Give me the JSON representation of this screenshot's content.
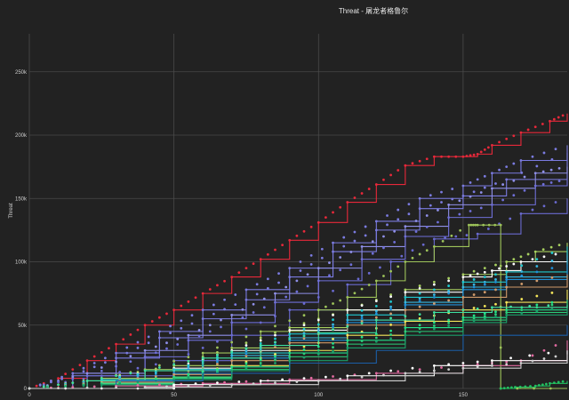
{
  "chart_data": {
    "type": "line",
    "title": "Threat - 屠龙者格鲁尔",
    "xlabel": "",
    "ylabel": "Threat",
    "xlim": [
      0,
      186
    ],
    "ylim": [
      0,
      280000
    ],
    "x_ticks": [
      "0",
      "50",
      "100",
      "150"
    ],
    "x_tick_values": [
      0,
      50,
      100,
      150
    ],
    "y_ticks": [
      "0",
      "50k",
      "100k",
      "150k",
      "200k",
      "250k"
    ],
    "y_tick_values": [
      0,
      50000,
      100000,
      150000,
      200000,
      250000
    ],
    "grid": true,
    "series": [
      {
        "color": "#e8283a",
        "marker": true,
        "points": [
          [
            0,
            0
          ],
          [
            10,
            8000
          ],
          [
            20,
            22000
          ],
          [
            30,
            35000
          ],
          [
            40,
            50000
          ],
          [
            50,
            62000
          ],
          [
            60,
            75000
          ],
          [
            70,
            88000
          ],
          [
            80,
            102000
          ],
          [
            90,
            117000
          ],
          [
            100,
            131000
          ],
          [
            110,
            147000
          ],
          [
            120,
            161000
          ],
          [
            130,
            176000
          ],
          [
            140,
            183000
          ],
          [
            150,
            183000
          ],
          [
            155,
            185000
          ],
          [
            160,
            192000
          ],
          [
            170,
            202000
          ],
          [
            180,
            211000
          ],
          [
            186,
            217000
          ]
        ]
      },
      {
        "color": "#7b7be0",
        "marker": true,
        "points": [
          [
            0,
            0
          ],
          [
            15,
            12000
          ],
          [
            30,
            28000
          ],
          [
            45,
            45000
          ],
          [
            60,
            62000
          ],
          [
            75,
            78000
          ],
          [
            90,
            95000
          ],
          [
            105,
            115000
          ],
          [
            120,
            132000
          ],
          [
            135,
            150000
          ],
          [
            150,
            160000
          ],
          [
            160,
            170000
          ],
          [
            170,
            180000
          ],
          [
            186,
            192000
          ]
        ]
      },
      {
        "color": "#7b7be0",
        "marker": true,
        "points": [
          [
            0,
            0
          ],
          [
            15,
            10000
          ],
          [
            30,
            24000
          ],
          [
            45,
            40000
          ],
          [
            60,
            55000
          ],
          [
            75,
            70000
          ],
          [
            90,
            88000
          ],
          [
            105,
            108000
          ],
          [
            120,
            125000
          ],
          [
            135,
            142000
          ],
          [
            150,
            152000
          ],
          [
            165,
            165000
          ],
          [
            186,
            186000
          ]
        ]
      },
      {
        "color": "#8f8fe8",
        "marker": true,
        "points": [
          [
            0,
            0
          ],
          [
            20,
            12000
          ],
          [
            40,
            30000
          ],
          [
            55,
            42000
          ],
          [
            70,
            58000
          ],
          [
            85,
            75000
          ],
          [
            100,
            95000
          ],
          [
            115,
            112000
          ],
          [
            130,
            128000
          ],
          [
            145,
            145000
          ],
          [
            160,
            158000
          ],
          [
            175,
            170000
          ],
          [
            186,
            175000
          ]
        ]
      },
      {
        "color": "#6f6fd8",
        "marker": true,
        "points": [
          [
            0,
            0
          ],
          [
            20,
            10000
          ],
          [
            40,
            25000
          ],
          [
            55,
            38000
          ],
          [
            70,
            52000
          ],
          [
            85,
            68000
          ],
          [
            100,
            85000
          ],
          [
            115,
            102000
          ],
          [
            130,
            120000
          ],
          [
            145,
            135000
          ],
          [
            160,
            145000
          ],
          [
            175,
            160000
          ],
          [
            186,
            165000
          ]
        ]
      },
      {
        "color": "#6a6ad0",
        "marker": true,
        "points": [
          [
            0,
            0
          ],
          [
            25,
            10000
          ],
          [
            50,
            22000
          ],
          [
            70,
            42000
          ],
          [
            90,
            62000
          ],
          [
            110,
            82000
          ],
          [
            125,
            100000
          ],
          [
            140,
            118000
          ],
          [
            155,
            122000
          ],
          [
            170,
            138000
          ],
          [
            186,
            150000
          ]
        ]
      },
      {
        "color": "#9ec45a",
        "marker": true,
        "points": [
          [
            0,
            0
          ],
          [
            20,
            6000
          ],
          [
            40,
            15000
          ],
          [
            60,
            28000
          ],
          [
            80,
            45000
          ],
          [
            100,
            62000
          ],
          [
            110,
            72000
          ],
          [
            120,
            85000
          ],
          [
            130,
            100000
          ],
          [
            140,
            112000
          ],
          [
            152,
            129000
          ],
          [
            155,
            129000
          ],
          [
            163,
            129000
          ],
          [
            163,
            0
          ],
          [
            186,
            0
          ]
        ]
      },
      {
        "color": "#a8d060",
        "marker": true,
        "points": [
          [
            0,
            0
          ],
          [
            25,
            8000
          ],
          [
            50,
            18000
          ],
          [
            70,
            32000
          ],
          [
            90,
            48000
          ],
          [
            110,
            62000
          ],
          [
            130,
            78000
          ],
          [
            150,
            90000
          ],
          [
            165,
            100000
          ],
          [
            175,
            108000
          ],
          [
            186,
            115000
          ]
        ]
      },
      {
        "color": "#ffffff",
        "marker": true,
        "points": [
          [
            0,
            0
          ],
          [
            25,
            7000
          ],
          [
            50,
            16000
          ],
          [
            70,
            30000
          ],
          [
            90,
            46000
          ],
          [
            110,
            62000
          ],
          [
            130,
            76000
          ],
          [
            150,
            88000
          ],
          [
            160,
            93000
          ],
          [
            170,
            100000
          ],
          [
            186,
            108000
          ]
        ]
      },
      {
        "color": "#1ec8d0",
        "marker": true,
        "points": [
          [
            0,
            0
          ],
          [
            25,
            7000
          ],
          [
            50,
            15000
          ],
          [
            70,
            28000
          ],
          [
            90,
            43000
          ],
          [
            110,
            58000
          ],
          [
            130,
            72000
          ],
          [
            150,
            84000
          ],
          [
            165,
            92000
          ],
          [
            186,
            112000
          ]
        ]
      },
      {
        "color": "#36b6e0",
        "marker": true,
        "points": [
          [
            0,
            0
          ],
          [
            25,
            6000
          ],
          [
            50,
            14000
          ],
          [
            70,
            26000
          ],
          [
            90,
            40000
          ],
          [
            110,
            54000
          ],
          [
            130,
            68000
          ],
          [
            150,
            80000
          ],
          [
            165,
            88000
          ],
          [
            186,
            105000
          ]
        ]
      },
      {
        "color": "#1f8fd8",
        "marker": true,
        "points": [
          [
            0,
            0
          ],
          [
            25,
            5000
          ],
          [
            50,
            12000
          ],
          [
            70,
            24000
          ],
          [
            90,
            38000
          ],
          [
            110,
            52000
          ],
          [
            130,
            66000
          ],
          [
            150,
            78000
          ],
          [
            165,
            86000
          ],
          [
            186,
            98000
          ]
        ]
      },
      {
        "color": "#d09a6a",
        "marker": true,
        "points": [
          [
            0,
            0
          ],
          [
            25,
            5000
          ],
          [
            50,
            11000
          ],
          [
            70,
            22000
          ],
          [
            90,
            36000
          ],
          [
            110,
            50000
          ],
          [
            130,
            62000
          ],
          [
            150,
            72000
          ],
          [
            165,
            80000
          ],
          [
            186,
            90000
          ]
        ]
      },
      {
        "color": "#f5e65a",
        "marker": true,
        "points": [
          [
            0,
            0
          ],
          [
            25,
            4000
          ],
          [
            50,
            9000
          ],
          [
            70,
            18000
          ],
          [
            90,
            30000
          ],
          [
            110,
            42000
          ],
          [
            130,
            53000
          ],
          [
            150,
            62000
          ],
          [
            165,
            68000
          ],
          [
            186,
            78000
          ]
        ]
      },
      {
        "color": "#22e08a",
        "marker": true,
        "points": [
          [
            0,
            0
          ],
          [
            25,
            4000
          ],
          [
            50,
            9000
          ],
          [
            70,
            17000
          ],
          [
            90,
            28000
          ],
          [
            110,
            38000
          ],
          [
            130,
            48000
          ],
          [
            150,
            56000
          ],
          [
            165,
            62000
          ],
          [
            186,
            70000
          ]
        ]
      },
      {
        "color": "#2bd07a",
        "marker": true,
        "points": [
          [
            0,
            0
          ],
          [
            25,
            3000
          ],
          [
            50,
            8000
          ],
          [
            70,
            15000
          ],
          [
            90,
            25000
          ],
          [
            110,
            35000
          ],
          [
            130,
            45000
          ],
          [
            150,
            54000
          ],
          [
            165,
            60000
          ],
          [
            186,
            68000
          ]
        ]
      },
      {
        "color": "#1a9e6a",
        "marker": true,
        "points": [
          [
            0,
            0
          ],
          [
            25,
            3000
          ],
          [
            50,
            7000
          ],
          [
            70,
            14000
          ],
          [
            90,
            22000
          ],
          [
            110,
            32000
          ],
          [
            130,
            42000
          ],
          [
            150,
            52000
          ],
          [
            165,
            58000
          ],
          [
            186,
            64000
          ]
        ]
      },
      {
        "color": "#3fe0a0",
        "marker": true,
        "points": [
          [
            0,
            0
          ],
          [
            20,
            6000
          ],
          [
            40,
            14000
          ],
          [
            60,
            24000
          ],
          [
            80,
            34000
          ],
          [
            100,
            44000
          ],
          [
            120,
            54000
          ],
          [
            140,
            60000
          ],
          [
            160,
            64000
          ],
          [
            186,
            66000
          ]
        ]
      },
      {
        "color": "#1b5ea8",
        "marker": false,
        "points": [
          [
            0,
            0
          ],
          [
            30,
            6000
          ],
          [
            60,
            12000
          ],
          [
            90,
            20000
          ],
          [
            120,
            30000
          ],
          [
            150,
            42000
          ],
          [
            186,
            50000
          ]
        ]
      },
      {
        "color": "#e06aa0",
        "marker": true,
        "points": [
          [
            0,
            0
          ],
          [
            30,
            2000
          ],
          [
            60,
            4000
          ],
          [
            90,
            7000
          ],
          [
            120,
            12000
          ],
          [
            150,
            18000
          ],
          [
            170,
            22000
          ],
          [
            186,
            38000
          ]
        ]
      },
      {
        "color": "#ffffff",
        "marker": true,
        "points": [
          [
            0,
            0
          ],
          [
            50,
            0
          ],
          [
            50,
            3000
          ],
          [
            80,
            6000
          ],
          [
            110,
            10000
          ],
          [
            140,
            18000
          ],
          [
            160,
            22000
          ],
          [
            186,
            30000
          ]
        ]
      },
      {
        "color": "#d0d0d0",
        "marker": true,
        "points": [
          [
            0,
            0
          ],
          [
            40,
            1000
          ],
          [
            70,
            3000
          ],
          [
            100,
            6000
          ],
          [
            130,
            12000
          ],
          [
            150,
            16000
          ],
          [
            170,
            20000
          ],
          [
            186,
            27000
          ]
        ]
      },
      {
        "color": "#22c060",
        "marker": true,
        "points": [
          [
            163,
            0
          ],
          [
            168,
            1000
          ],
          [
            175,
            2000
          ],
          [
            180,
            4000
          ],
          [
            186,
            6000
          ]
        ]
      }
    ]
  }
}
